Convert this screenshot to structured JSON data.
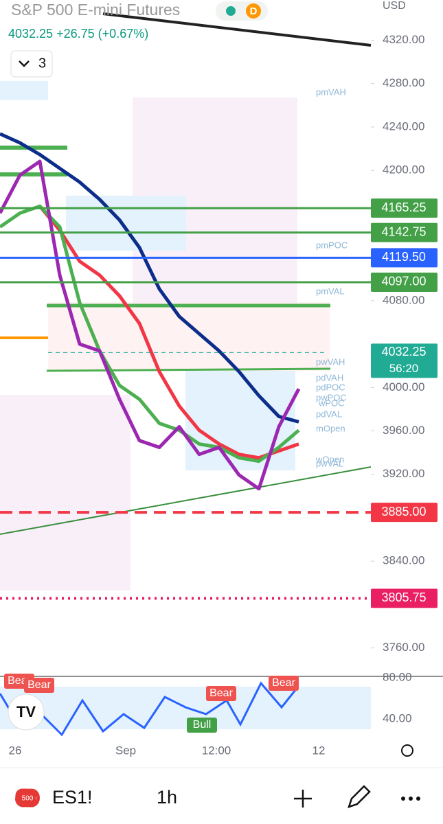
{
  "header": {
    "title": "S&P 500 E-mini Futures",
    "badge": "D",
    "currency": "USD",
    "price": "4032.25",
    "change": "+26.75",
    "change_pct": "(+0.67%)",
    "collapse_count": "3"
  },
  "chart_data": {
    "type": "line",
    "ylim": [
      3737,
      4357
    ],
    "yticks": [
      {
        "value": 4320,
        "label": "4320.00"
      },
      {
        "value": 4280,
        "label": "4280.00"
      },
      {
        "value": 4240,
        "label": "4240.00"
      },
      {
        "value": 4200,
        "label": "4200.00"
      },
      {
        "value": 4080,
        "label": "4080.00"
      },
      {
        "value": 4000,
        "label": "4000.00"
      },
      {
        "value": 3960,
        "label": "3960.00"
      },
      {
        "value": 3920,
        "label": "3920.00"
      },
      {
        "value": 3840,
        "label": "3840.00"
      },
      {
        "value": 3760,
        "label": "3760.00"
      }
    ],
    "x_labels": [
      "26",
      "Sep",
      "12:00",
      "12"
    ],
    "series": [
      {
        "color": "#0d2d8a",
        "values": [
          4233.7,
          4225.4,
          4214.6,
          4201.9,
          4189.2,
          4173.3,
          4154.3,
          4128.9,
          4090.8,
          4065.4,
          4049.5,
          4033.7,
          4014.6,
          3992.4,
          3973.3,
          3968.3
        ]
      },
      {
        "color": "#f23645",
        "values": [
          null,
          null,
          4167.0,
          4144.8,
          4116.2,
          4103.5,
          4084.4,
          4059.0,
          4014.6,
          3982.9,
          3960.6,
          3947.9,
          3938.4,
          3935.2,
          3941.6,
          3947.9
        ]
      },
      {
        "color": "#4caf50",
        "values": [
          4147.9,
          4160.6,
          4167.0,
          4147.9,
          4078.1,
          4033.7,
          4001.9,
          3989.2,
          3967.0,
          3960.6,
          3947.9,
          3944.8,
          3935.2,
          3932.1,
          3944.8,
          3960.6
        ]
      },
      {
        "color": "#9c27b0",
        "values": [
          4160.6,
          4195.6,
          4208.3,
          4103.5,
          4040.0,
          4033.7,
          3989.2,
          3951.1,
          3944.8,
          3963.8,
          3938.4,
          3944.8,
          3919.4,
          3906.7,
          3963.8,
          3998.7
        ]
      }
    ],
    "levels": [
      {
        "value": 4165.25,
        "value_label": "4165.25",
        "color": "#43a047",
        "style": "solid"
      },
      {
        "value": 4142.75,
        "value_label": "4142.75",
        "color": "#43a047",
        "style": "solid"
      },
      {
        "value": 4119.5,
        "value_label": "4119.50",
        "color": "#2962ff",
        "style": "solid"
      },
      {
        "value": 4097,
        "value_label": "4097.00",
        "color": "#43a047",
        "style": "solid"
      },
      {
        "value": 4032.25,
        "value_label": "4032.25",
        "color": "#22ab94",
        "style": "dashed",
        "countdown": "56:20"
      },
      {
        "value": 3885,
        "value_label": "3885.00",
        "color": "#f23645",
        "style": "dashed"
      },
      {
        "value": 3805.75,
        "value_label": "3805.75",
        "color": "#e91e63",
        "style": "dotted"
      }
    ],
    "annotations": [
      "pmVAH",
      "pmPOC",
      "pmVAL",
      "pwVAH",
      "pdVAH",
      "pdPOC",
      "pwPOC",
      "wPOC",
      "pdVAL",
      "mOpen",
      "wOpen",
      "pwVAL"
    ],
    "rsi": {
      "yticks": [
        {
          "value": 80,
          "label": "80.00"
        },
        {
          "value": 40,
          "label": "40.00"
        }
      ],
      "signals": [
        "Bear",
        "Bear",
        "Bear",
        "Bear",
        "Bull"
      ]
    }
  },
  "toolbar": {
    "exchange_icon": "500",
    "symbol": "ES1!",
    "interval": "1h"
  }
}
